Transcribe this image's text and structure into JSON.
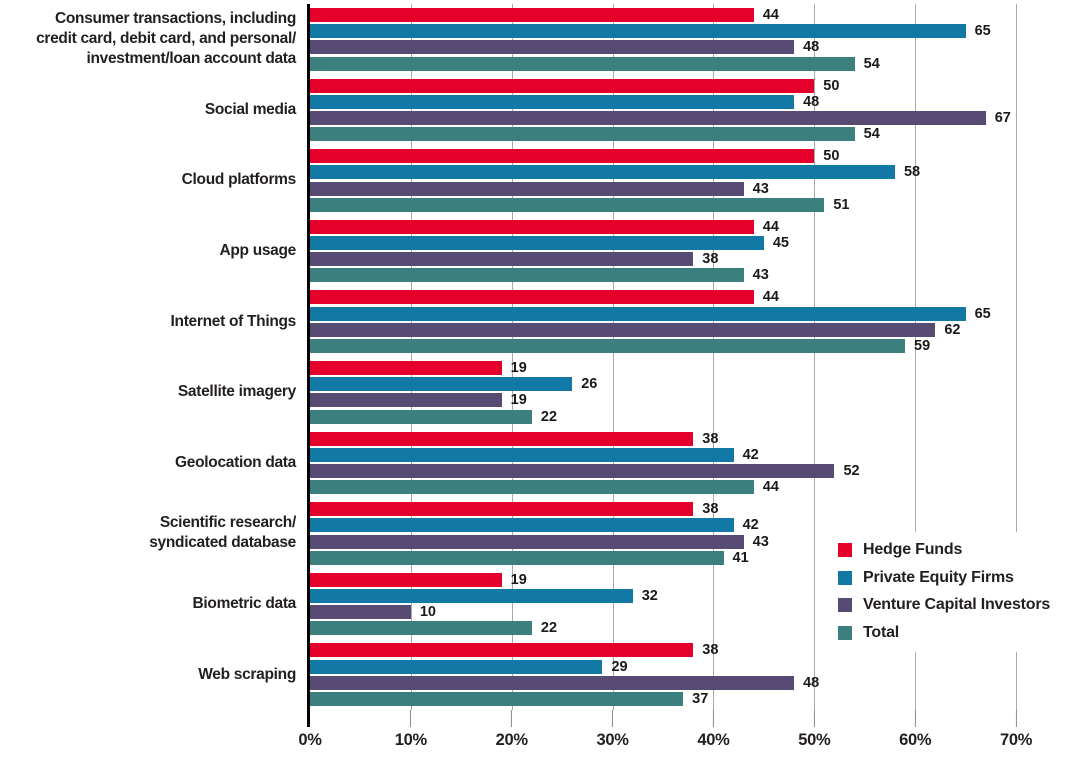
{
  "colors": {
    "hedge_funds": "#e4002b",
    "private_equity": "#1278a5",
    "venture_capital": "#574b73",
    "total": "#3b7f7e",
    "gridline": "#a9a9a9",
    "tick": "#8a8a8a",
    "axis": "#000000",
    "text": "#231f20"
  },
  "chart_data": {
    "type": "bar",
    "orientation": "horizontal",
    "title": "",
    "xlabel": "",
    "ylabel": "",
    "xlim": [
      0,
      70
    ],
    "grid": "vertical gridlines every 10%, drawn behind bars",
    "value_labels": "shown at end of each bar",
    "x_ticks": [
      "0%",
      "10%",
      "20%",
      "30%",
      "40%",
      "50%",
      "60%",
      "70%"
    ],
    "legend": {
      "position": "right-center, white background over plot",
      "items": [
        "Hedge Funds",
        "Private Equity Firms",
        "Venture Capital Investors",
        "Total"
      ]
    },
    "categories": [
      [
        "Consumer transactions, including",
        "credit card, debit card, and personal/",
        "investment/loan account data"
      ],
      [
        "Social media"
      ],
      [
        "Cloud platforms"
      ],
      [
        "App usage"
      ],
      [
        "Internet of Things"
      ],
      [
        "Satellite imagery"
      ],
      [
        "Geolocation data"
      ],
      [
        "Scientific research/",
        "syndicated database"
      ],
      [
        "Biometric data"
      ],
      [
        "Web scraping"
      ]
    ],
    "series": [
      {
        "name": "Hedge Funds",
        "color": "#e4002b",
        "values": [
          44,
          50,
          50,
          44,
          44,
          19,
          38,
          38,
          19,
          38
        ]
      },
      {
        "name": "Private Equity Firms",
        "color": "#1278a5",
        "values": [
          65,
          48,
          58,
          45,
          65,
          26,
          42,
          42,
          32,
          29
        ]
      },
      {
        "name": "Venture Capital Investors",
        "color": "#574b73",
        "values": [
          48,
          67,
          43,
          38,
          62,
          19,
          52,
          43,
          10,
          48
        ]
      },
      {
        "name": "Total",
        "color": "#3b7f7e",
        "values": [
          54,
          54,
          51,
          43,
          59,
          22,
          44,
          41,
          22,
          37
        ]
      }
    ]
  }
}
